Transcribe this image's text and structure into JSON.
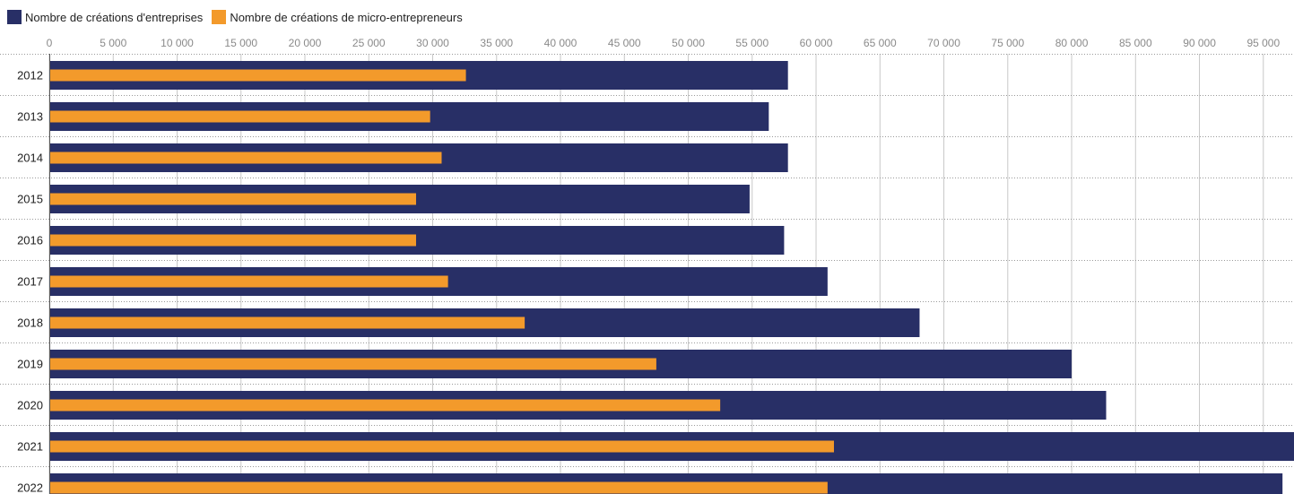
{
  "chart_data": {
    "type": "bar",
    "orientation": "horizontal",
    "categories": [
      "2012",
      "2013",
      "2014",
      "2015",
      "2016",
      "2017",
      "2018",
      "2019",
      "2020",
      "2021",
      "2022"
    ],
    "series": [
      {
        "name": "Nombre de créations d'entreprises",
        "color": "#282f66",
        "values": [
          57800,
          56300,
          57800,
          54800,
          57500,
          60900,
          68100,
          80000,
          82700,
          97400,
          96500
        ]
      },
      {
        "name": "Nombre de créations de micro-entrepreneurs",
        "color": "#f39a2b",
        "values": [
          32600,
          29800,
          30700,
          28700,
          28700,
          31200,
          37200,
          47500,
          52500,
          61400,
          60900
        ]
      }
    ],
    "x_ticks": [
      "0",
      "5 000",
      "10 000",
      "15 000",
      "20 000",
      "25 000",
      "30 000",
      "35 000",
      "40 000",
      "45 000",
      "50 000",
      "55 000",
      "60 000",
      "65 000",
      "70 000",
      "75 000",
      "80 000",
      "85 000",
      "90 000",
      "95 000"
    ],
    "x_tick_values": [
      0,
      5000,
      10000,
      15000,
      20000,
      25000,
      30000,
      35000,
      40000,
      45000,
      50000,
      55000,
      60000,
      65000,
      70000,
      75000,
      80000,
      85000,
      90000,
      95000
    ],
    "xlim": [
      0,
      97400
    ],
    "grid": true,
    "legend_position": "top-left",
    "title": "",
    "xlabel": "",
    "ylabel": ""
  }
}
